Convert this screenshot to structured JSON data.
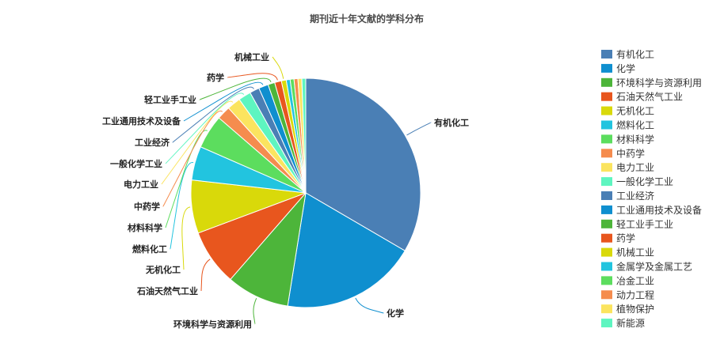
{
  "chart_data": {
    "type": "pie",
    "title": "期刊近十年文献的学科分布",
    "legend_position": "right",
    "categories": [
      "有机化工",
      "化学",
      "环境科学与资源利用",
      "石油天然气工业",
      "无机化工",
      "燃料化工",
      "材料科学",
      "中药学",
      "电力工业",
      "一般化学工业",
      "工业经济",
      "工业通用技术及设备",
      "轻工业手工业",
      "药学",
      "机械工业",
      "金属学及金属工艺",
      "冶金工业",
      "动力工程",
      "植物保护",
      "新能源"
    ],
    "values": [
      245,
      140,
      65,
      58,
      55,
      35,
      35,
      14,
      14,
      13,
      10,
      10,
      7,
      7,
      5,
      4,
      4,
      4,
      4,
      4
    ],
    "colors": [
      "#4a7fb5",
      "#0f8fcf",
      "#4db53a",
      "#e8561e",
      "#d9d90a",
      "#22c4df",
      "#5cdd5e",
      "#f58c4e",
      "#fbe45f",
      "#5ef5c0",
      "#4a7fb5",
      "#0f8fcf",
      "#4db53a",
      "#e8561e",
      "#d9d90a",
      "#22c4df",
      "#5cdd5e",
      "#f58c4e",
      "#fbe45f",
      "#5ef5c0"
    ]
  }
}
